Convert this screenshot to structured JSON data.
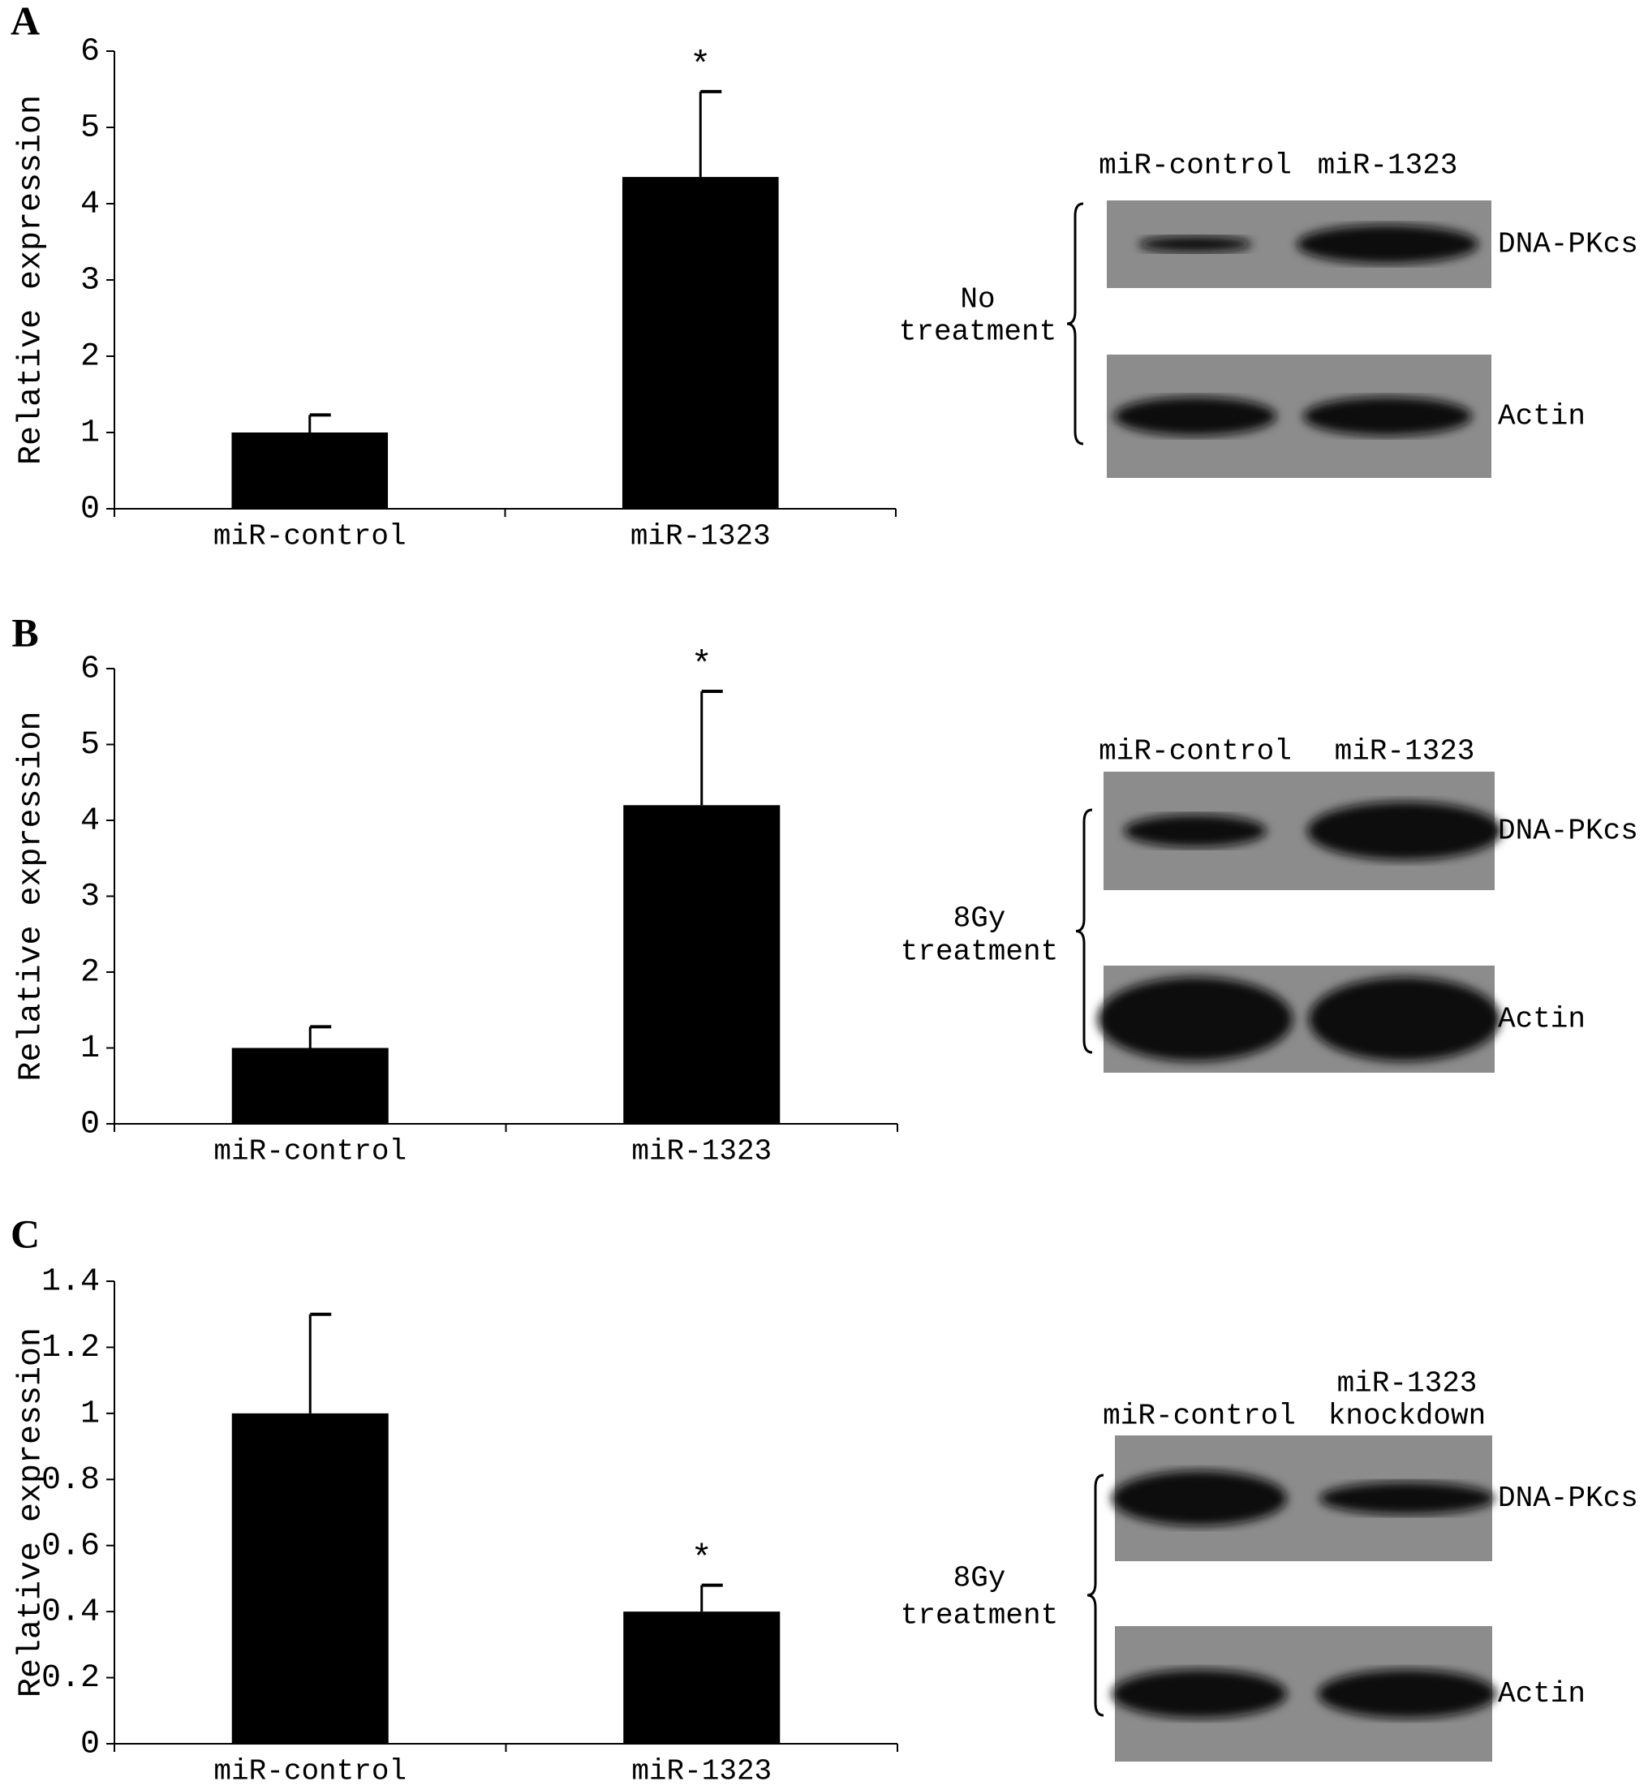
{
  "chart_data": [
    {
      "type": "bar",
      "panel_label": "A",
      "y_label": "Relative expression",
      "categories": [
        "miR-control",
        "miR-1323"
      ],
      "values": [
        1,
        4.35
      ],
      "errors": [
        0.23,
        1.12
      ],
      "annotations": [
        null,
        "*"
      ],
      "color": "#000000",
      "ylim": [
        0,
        6
      ],
      "yticks": [
        0,
        1,
        2,
        3,
        4,
        5,
        6
      ]
    },
    {
      "type": "bar",
      "panel_label": "B",
      "y_label": "Relative expression",
      "categories": [
        "miR-control",
        "miR-1323"
      ],
      "values": [
        1,
        4.2
      ],
      "errors": [
        0.28,
        1.5
      ],
      "annotations": [
        null,
        "*"
      ],
      "color": "#000000",
      "ylim": [
        0,
        6
      ],
      "yticks": [
        0,
        1,
        2,
        3,
        4,
        5,
        6
      ]
    },
    {
      "type": "bar",
      "panel_label": "C",
      "y_label": "Relative expression",
      "categories": [
        "miR-control",
        "miR-1323"
      ],
      "values": [
        1,
        0.4
      ],
      "errors": [
        0.3,
        0.08
      ],
      "annotations": [
        null,
        "*"
      ],
      "color": "#000000",
      "ylim": [
        0,
        1.4
      ],
      "yticks": [
        0,
        0.2,
        0.4,
        0.6,
        0.8,
        1,
        1.2,
        1.4
      ]
    }
  ],
  "blots": [
    {
      "columns": [
        [
          "miR-control"
        ],
        [
          "miR-1323"
        ]
      ],
      "bands": [
        "DNA-PKcs",
        "Actin"
      ],
      "treatment": [
        "No",
        "treatment"
      ]
    },
    {
      "columns": [
        [
          "miR-control"
        ],
        [
          "miR-1323"
        ]
      ],
      "bands": [
        "DNA-PKcs",
        "Actin"
      ],
      "treatment": [
        "8Gy",
        "treatment"
      ]
    },
    {
      "columns": [
        [
          "miR-control"
        ],
        [
          "miR-1323",
          "knockdown"
        ]
      ],
      "bands": [
        "DNA-PKcs",
        "Actin"
      ],
      "treatment": [
        "8Gy",
        "treatment"
      ]
    }
  ]
}
